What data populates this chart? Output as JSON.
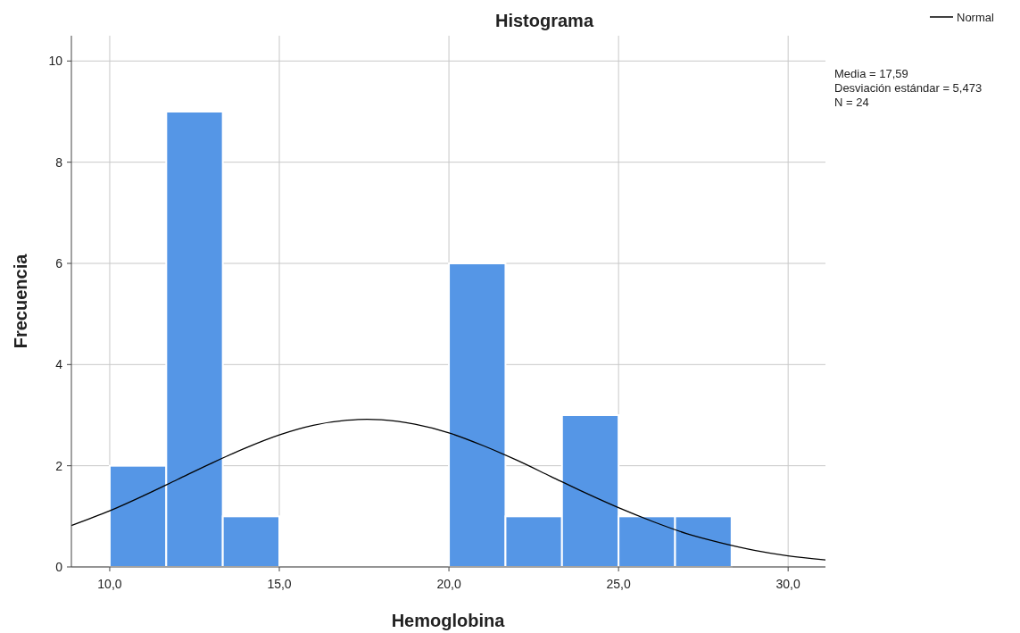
{
  "chart_data": {
    "type": "histogram",
    "title": "Histograma",
    "xlabel": "Hemoglobina",
    "ylabel": "Frecuencia",
    "series": [
      {
        "color": "#5596e6",
        "bins": [
          10,
          11.667,
          13.333,
          15,
          16.667,
          18.333,
          20,
          21.667,
          23.333,
          25,
          26.667,
          28.333
        ],
        "values": [
          2,
          9,
          1,
          0,
          0,
          0,
          6,
          1,
          3,
          1,
          1
        ]
      },
      {
        "type": "line",
        "name": "Normal",
        "color": "#000000",
        "x": [
          8.87,
          10,
          11,
          12,
          13,
          14,
          15,
          16,
          17,
          17.59,
          18,
          19,
          20,
          21,
          22,
          23,
          24,
          25,
          26,
          27,
          28,
          29,
          30,
          31.1
        ],
        "values": [
          0.82,
          1.11,
          1.41,
          1.73,
          2.05,
          2.35,
          2.61,
          2.8,
          2.9,
          2.92,
          2.91,
          2.82,
          2.65,
          2.4,
          2.11,
          1.79,
          1.47,
          1.17,
          0.9,
          0.66,
          0.48,
          0.33,
          0.22,
          0.14
        ]
      }
    ],
    "xlim": [
      8.87,
      31.1
    ],
    "ylim": [
      0,
      10.5
    ],
    "xticks": [
      {
        "value": 10,
        "label": "10,0"
      },
      {
        "value": 15,
        "label": "15,0"
      },
      {
        "value": 20,
        "label": "20,0"
      },
      {
        "value": 25,
        "label": "25,0"
      },
      {
        "value": 30,
        "label": "30,0"
      }
    ],
    "yticks": [
      0,
      2,
      4,
      6,
      8,
      10
    ],
    "grid": true,
    "legend": "top right",
    "marker": "none",
    "line_style": "solid",
    "annotations": [
      "Media = 17,59",
      "Desviación estándar = 5,473",
      "N = 24"
    ]
  }
}
